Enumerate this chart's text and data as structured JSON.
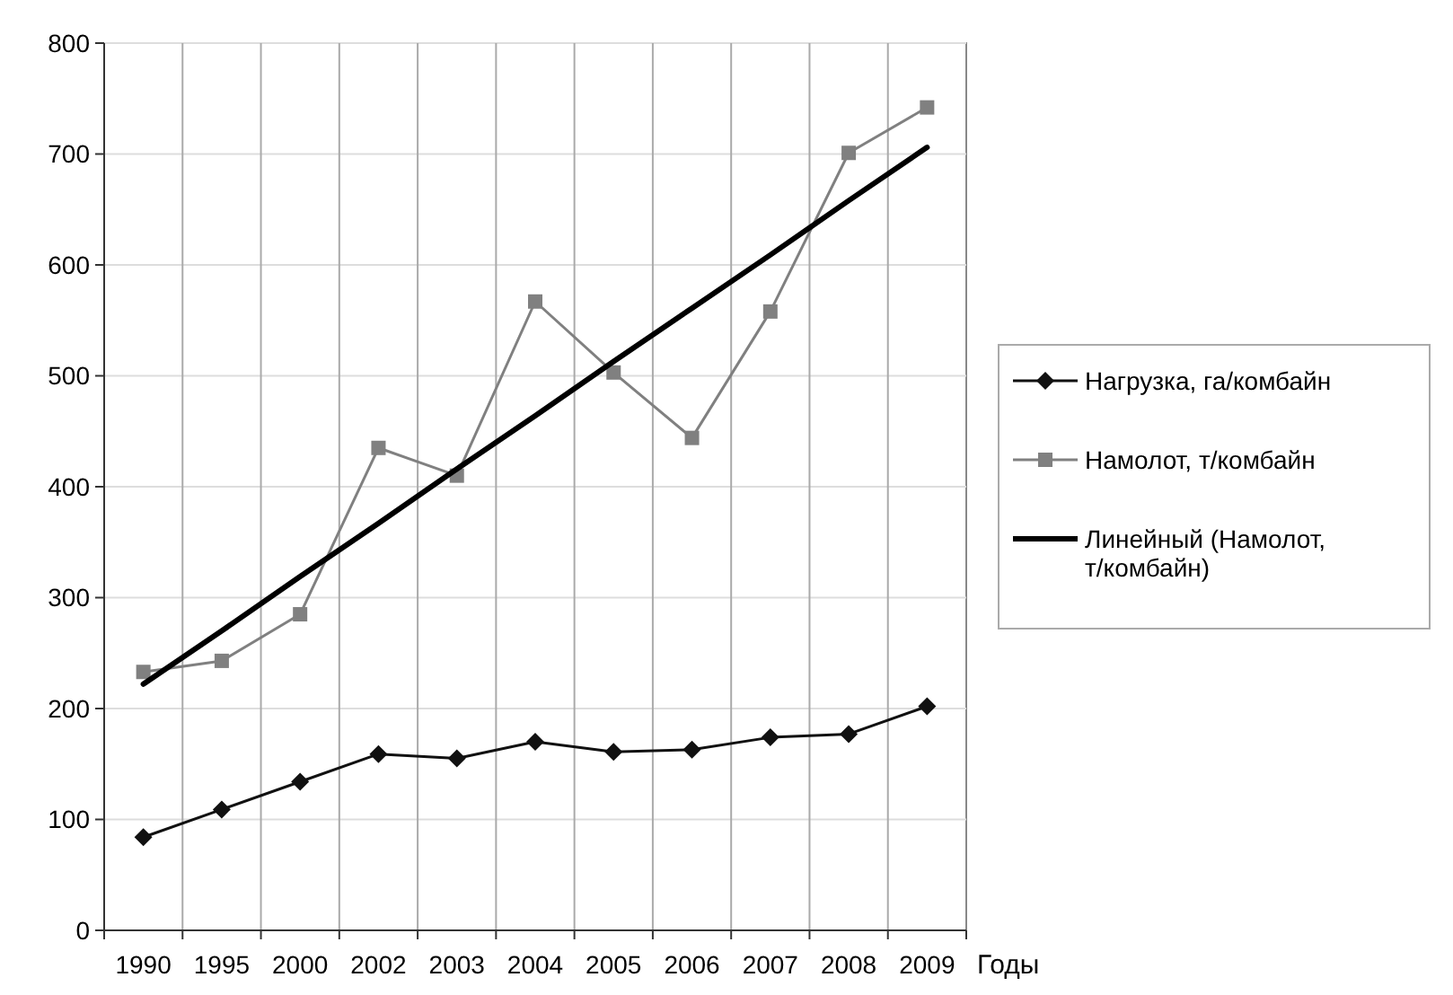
{
  "chart_data": {
    "type": "line",
    "xlabel": "Годы",
    "categories": [
      "1990",
      "1995",
      "2000",
      "2002",
      "2003",
      "2004",
      "2005",
      "2006",
      "2007",
      "2008",
      "2009"
    ],
    "series": [
      {
        "name": "Нагрузка, га/комбайн",
        "color": "#111111",
        "marker": "diamond",
        "values": [
          84,
          109,
          134,
          159,
          155,
          170,
          161,
          163,
          174,
          177,
          202
        ]
      },
      {
        "name": "Намолот, т/комбайн",
        "color": "#808080",
        "marker": "square",
        "values": [
          233,
          243,
          285,
          435,
          410,
          567,
          503,
          444,
          558,
          701,
          742
        ]
      },
      {
        "name": "Линейный (Намолот, т/комбайн)",
        "color": "#000000",
        "marker": "none",
        "values": [
          222,
          270,
          319,
          367,
          416,
          464,
          513,
          561,
          609,
          658,
          706
        ]
      }
    ],
    "ylim": [
      0,
      800
    ],
    "yticks": [
      0,
      100,
      200,
      300,
      400,
      500,
      600,
      700,
      800
    ],
    "grid": true,
    "legend": "right"
  }
}
